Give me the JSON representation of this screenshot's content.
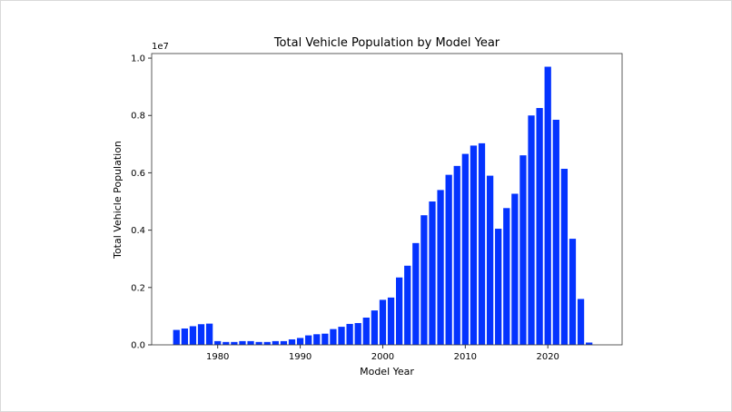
{
  "chart_data": {
    "type": "bar",
    "title": "Total Vehicle Population by Model Year",
    "xlabel": "Model Year",
    "ylabel": "Total Vehicle Population",
    "y_offset_label": "1e7",
    "color": "#0433ff",
    "xlim": [
      1972,
      2029
    ],
    "ylim": [
      0,
      1.016
    ],
    "grid": false,
    "xticks": [
      1980,
      1990,
      2000,
      2010,
      2020
    ],
    "yticks": [
      "0.0",
      "0.2",
      "0.4",
      "0.6",
      "0.8",
      "1.0"
    ],
    "x": [
      1975,
      1976,
      1977,
      1978,
      1979,
      1980,
      1981,
      1982,
      1983,
      1984,
      1985,
      1986,
      1987,
      1988,
      1989,
      1990,
      1991,
      1992,
      1993,
      1994,
      1995,
      1996,
      1997,
      1998,
      1999,
      2000,
      2001,
      2002,
      2003,
      2004,
      2005,
      2006,
      2007,
      2008,
      2009,
      2010,
      2011,
      2012,
      2013,
      2014,
      2015,
      2016,
      2017,
      2018,
      2019,
      2020,
      2021,
      2022,
      2023,
      2024,
      2025
    ],
    "values": [
      0.052,
      0.057,
      0.065,
      0.072,
      0.074,
      0.013,
      0.01,
      0.01,
      0.013,
      0.013,
      0.01,
      0.01,
      0.013,
      0.013,
      0.019,
      0.024,
      0.033,
      0.037,
      0.039,
      0.055,
      0.063,
      0.073,
      0.076,
      0.095,
      0.12,
      0.157,
      0.165,
      0.235,
      0.276,
      0.355,
      0.452,
      0.5,
      0.54,
      0.593,
      0.624,
      0.666,
      0.695,
      0.703,
      0.59,
      0.405,
      0.477,
      0.527,
      0.661,
      0.8,
      0.826,
      0.97,
      0.785,
      0.614,
      0.37,
      0.16,
      0.008
    ]
  }
}
